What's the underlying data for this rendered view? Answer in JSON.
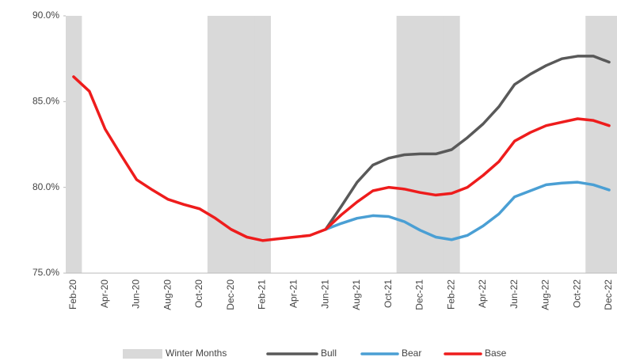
{
  "chart_data": {
    "type": "line",
    "categories": [
      "Feb-20",
      null,
      "Apr-20",
      null,
      "Jun-20",
      null,
      "Aug-20",
      null,
      "Oct-20",
      null,
      "Dec-20",
      null,
      "Feb-21",
      null,
      "Apr-21",
      null,
      "Jun-21",
      null,
      "Aug-21",
      null,
      "Oct-21",
      null,
      "Dec-21",
      null,
      "Feb-22",
      null,
      "Apr-22",
      null,
      "Jun-22",
      null,
      "Aug-22",
      null,
      "Oct-22",
      null,
      "Dec-22"
    ],
    "series": [
      {
        "name": "Winter Months",
        "type": "bar",
        "color": "#d9d9d9",
        "values": [
          90,
          null,
          null,
          null,
          null,
          null,
          null,
          null,
          null,
          90,
          90,
          90,
          90,
          null,
          null,
          null,
          null,
          null,
          null,
          null,
          null,
          90,
          90,
          90,
          90,
          null,
          null,
          null,
          null,
          null,
          null,
          null,
          null,
          90,
          90
        ]
      },
      {
        "name": "Bull",
        "type": "line",
        "color": "#595959",
        "values": [
          null,
          null,
          null,
          null,
          null,
          null,
          null,
          null,
          null,
          null,
          null,
          null,
          null,
          null,
          null,
          null,
          77.55,
          78.9,
          80.3,
          81.3,
          81.7,
          81.9,
          81.95,
          81.95,
          82.2,
          82.9,
          83.7,
          84.7,
          86.0,
          86.6,
          87.1,
          87.5,
          87.65,
          87.65,
          87.3
        ]
      },
      {
        "name": "Bear",
        "type": "line",
        "color": "#4a9fd4",
        "values": [
          null,
          null,
          null,
          null,
          null,
          null,
          null,
          null,
          null,
          null,
          null,
          null,
          null,
          null,
          null,
          null,
          77.55,
          77.9,
          78.2,
          78.35,
          78.3,
          78.0,
          77.5,
          77.1,
          76.95,
          77.2,
          77.75,
          78.45,
          79.45,
          79.8,
          80.15,
          80.25,
          80.3,
          80.15,
          79.85
        ]
      },
      {
        "name": "Base",
        "type": "line",
        "color": "#ee1c1c",
        "values": [
          86.45,
          85.6,
          83.4,
          81.9,
          80.45,
          79.85,
          79.3,
          79.0,
          78.75,
          78.2,
          77.55,
          77.1,
          76.9,
          77.0,
          77.1,
          77.2,
          77.55,
          78.4,
          79.15,
          79.8,
          80.0,
          79.9,
          79.7,
          79.55,
          79.65,
          80.0,
          80.7,
          81.5,
          82.7,
          83.2,
          83.6,
          83.8,
          84.0,
          83.9,
          83.6
        ]
      }
    ],
    "ylim": [
      75,
      90
    ],
    "yticks": [
      {
        "value": 75,
        "label": "75.0%"
      },
      {
        "value": 80,
        "label": "80.0%"
      },
      {
        "value": 85,
        "label": "85.0%"
      },
      {
        "value": 90,
        "label": "90.0%"
      }
    ],
    "grid": false,
    "legend": "bottom"
  }
}
